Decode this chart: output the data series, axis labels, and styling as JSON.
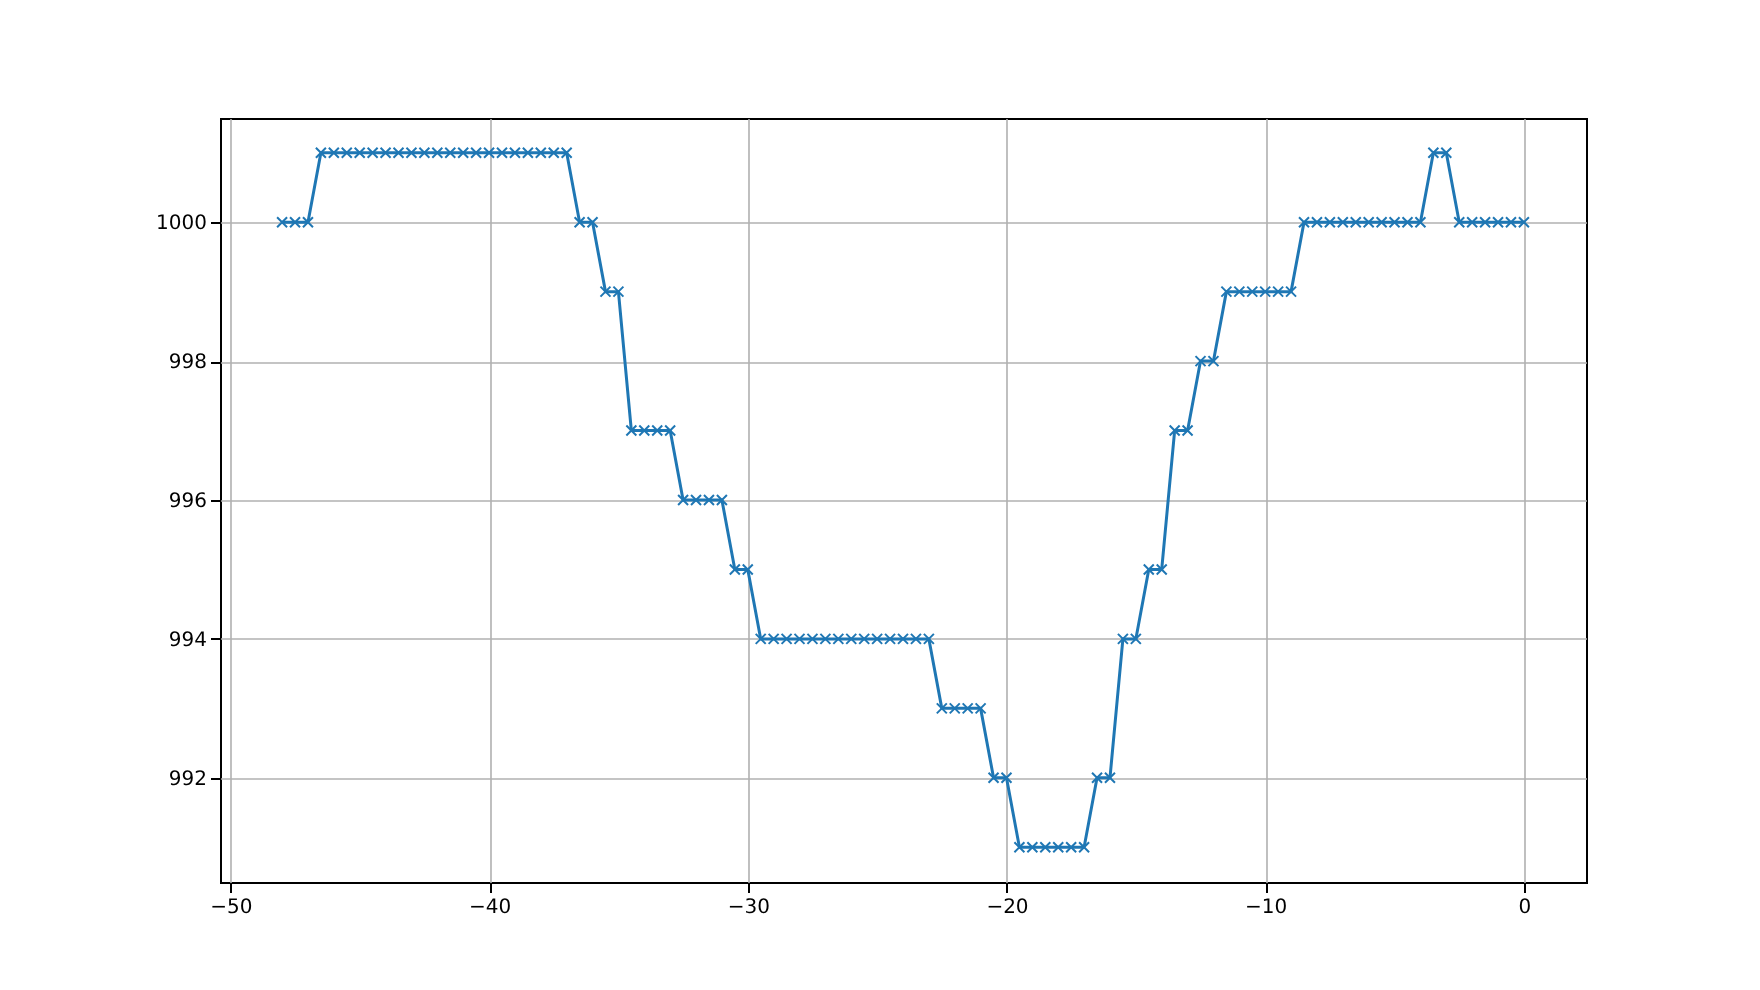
{
  "chart_data": {
    "type": "line",
    "x": [
      -48,
      -47.5,
      -47,
      -46.5,
      -46,
      -45.5,
      -45,
      -44.5,
      -44,
      -43.5,
      -43,
      -42.5,
      -42,
      -41.5,
      -41,
      -40.5,
      -40,
      -39.5,
      -39,
      -38.5,
      -38,
      -37.5,
      -37,
      -36.5,
      -36,
      -35.5,
      -35,
      -34.5,
      -34,
      -33.5,
      -33,
      -32.5,
      -32,
      -31.5,
      -31,
      -30.5,
      -30,
      -29.5,
      -29,
      -28.5,
      -28,
      -27.5,
      -27,
      -26.5,
      -26,
      -25.5,
      -25,
      -24.5,
      -24,
      -23.5,
      -23,
      -22.5,
      -22,
      -21.5,
      -21,
      -20.5,
      -20,
      -19.5,
      -19,
      -18.5,
      -18,
      -17.5,
      -17,
      -16.5,
      -16,
      -15.5,
      -15,
      -14.5,
      -14,
      -13.5,
      -13,
      -12.5,
      -12,
      -11.5,
      -11,
      -10.5,
      -10,
      -9.5,
      -9,
      -8.5,
      -8,
      -7.5,
      -7,
      -6.5,
      -6,
      -5.5,
      -5,
      -4.5,
      -4,
      -3.5,
      -3,
      -2.5,
      -2,
      -1.5,
      -1,
      -0.5,
      0
    ],
    "series": [
      {
        "color": "#1f77b4",
        "values": [
          1000,
          1000,
          1000,
          1001,
          1001,
          1001,
          1001,
          1001,
          1001,
          1001,
          1001,
          1001,
          1001,
          1001,
          1001,
          1001,
          1001,
          1001,
          1001,
          1001,
          1001,
          1001,
          1001,
          1000,
          1000,
          999,
          999,
          997,
          997,
          997,
          997,
          996,
          996,
          996,
          996,
          995,
          995,
          994,
          994,
          994,
          994,
          994,
          994,
          994,
          994,
          994,
          994,
          994,
          994,
          994,
          994,
          993,
          993,
          993,
          993,
          992,
          992,
          991,
          991,
          991,
          991,
          991,
          991,
          992,
          992,
          994,
          994,
          995,
          995,
          997,
          997,
          998,
          998,
          999,
          999,
          999,
          999,
          999,
          999,
          1000,
          1000,
          1000,
          1000,
          1000,
          1000,
          1000,
          1000,
          1000,
          1000,
          1001,
          1001,
          1000,
          1000,
          1000,
          1000,
          1000,
          1000
        ]
      }
    ],
    "xlim": [
      -50.4,
      2.4
    ],
    "xticks": [
      -50,
      -40,
      -30,
      -20,
      -10,
      0
    ],
    "ylim": [
      990.5,
      1001.5
    ],
    "yticks": [
      992,
      994,
      996,
      998,
      1000
    ],
    "grid": true,
    "marker": "cross",
    "line_style": "solid"
  }
}
